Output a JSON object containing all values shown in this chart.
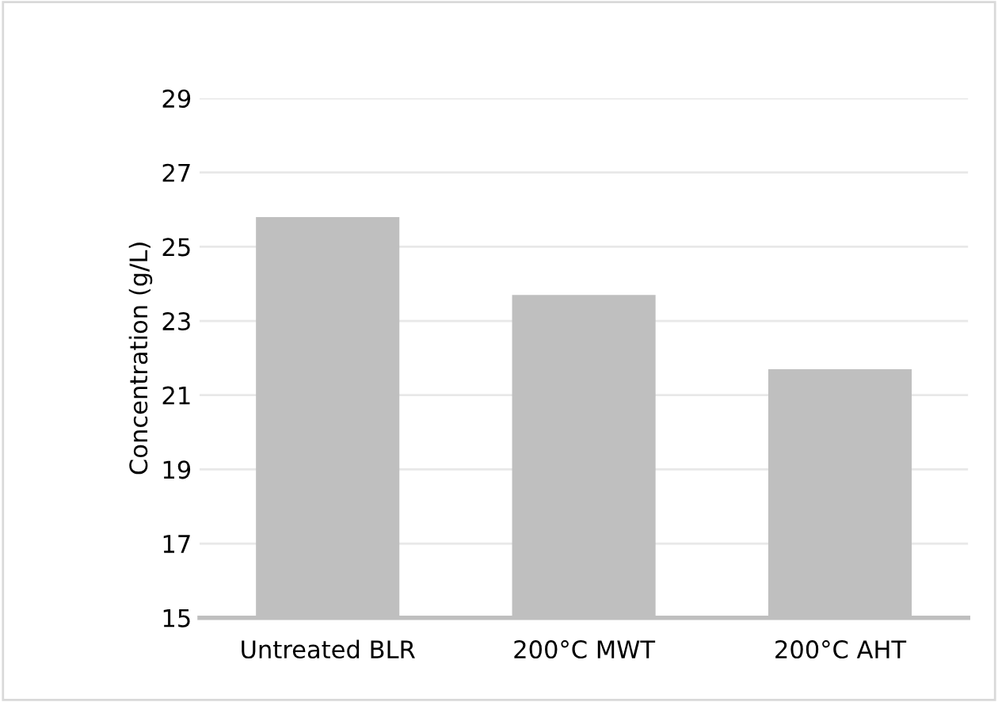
{
  "chart_data": {
    "type": "bar",
    "ylabel": "Concentration (g/L)",
    "categories": [
      "Untreated BLR",
      "200°C MWT",
      "200°C AHT"
    ],
    "values": [
      25.8,
      23.7,
      21.7
    ],
    "color": "#bfbfbf",
    "ylim": [
      15,
      29
    ],
    "yticks": [
      15,
      17,
      19,
      21,
      23,
      25,
      27,
      29
    ],
    "grid": "y",
    "legend": false
  }
}
